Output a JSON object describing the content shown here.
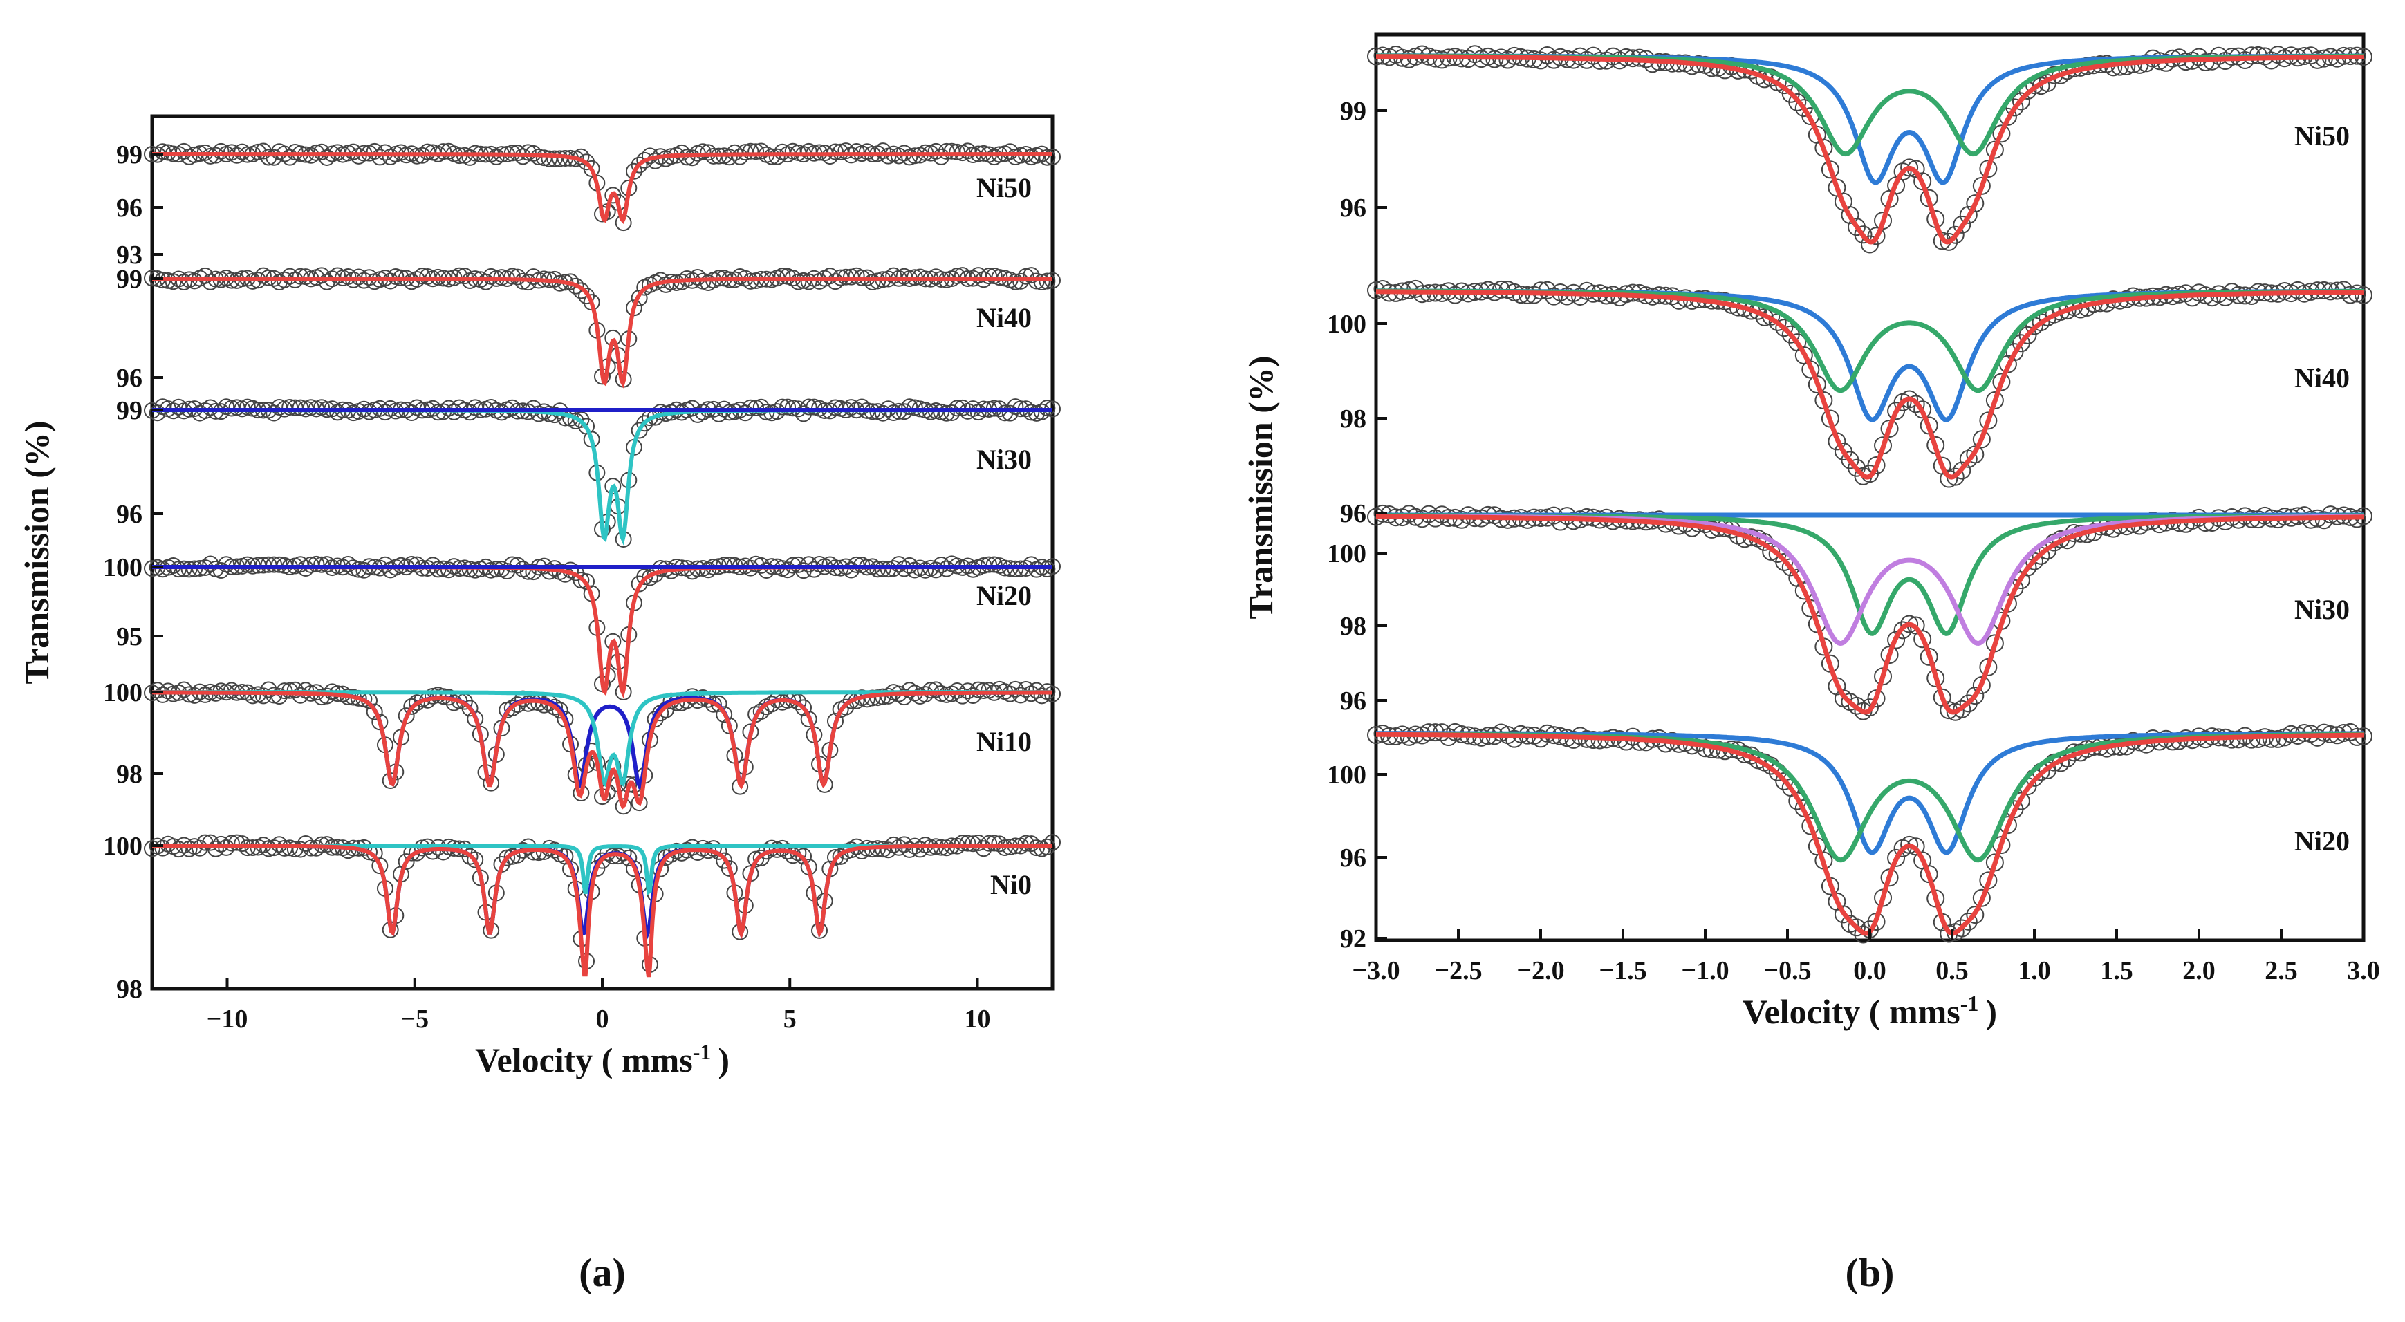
{
  "chart_data": [
    {
      "type": "line",
      "panel": "a",
      "caption": "(a)",
      "xlabel": "Velocity ( mms",
      "xlabel_sup": "-1",
      "xlabel_end": ")",
      "ylabel": "Transmission (%)",
      "xlim": [
        -12,
        12
      ],
      "xticks": [
        -10,
        -5,
        0,
        5,
        10
      ],
      "xtick_labels": [
        "−10",
        "−5",
        "0",
        "5",
        "10"
      ],
      "spectra": [
        {
          "label": "Ni50",
          "yticks": [
            "99",
            "96",
            "93"
          ],
          "components": [
            {
              "name": "fit",
              "color": "#e8433f",
              "kind": "doublet",
              "center": 0.3,
              "split": 0.5,
              "depth": 6.5,
              "width": 0.35
            }
          ]
        },
        {
          "label": "Ni40",
          "yticks": [
            "99",
            "96"
          ],
          "components": [
            {
              "name": "fit",
              "color": "#e8433f",
              "kind": "doublet",
              "center": 0.3,
              "split": 0.5,
              "depth": 6.5,
              "width": 0.35
            }
          ]
        },
        {
          "label": "Ni30",
          "yticks": [
            "99",
            "96"
          ],
          "components": [
            {
              "name": "doublet",
              "color": "#2ec4c4",
              "kind": "doublet",
              "center": 0.3,
              "split": 0.5,
              "depth": 5.5,
              "width": 0.35
            },
            {
              "name": "background",
              "color": "#1f1fc8",
              "kind": "flat"
            }
          ]
        },
        {
          "label": "Ni20",
          "yticks": [
            "100",
            "95"
          ],
          "components": [
            {
              "name": "fit",
              "color": "#e8433f",
              "kind": "doublet",
              "center": 0.3,
              "split": 0.5,
              "depth": 6.0,
              "width": 0.35
            },
            {
              "name": "background",
              "color": "#1f1fc8",
              "kind": "flat"
            }
          ]
        },
        {
          "label": "Ni10",
          "yticks": [
            "100",
            "98"
          ],
          "components": [
            {
              "name": "sextet",
              "color": "#1f1fc8",
              "kind": "sextet",
              "positions": [
                -5.6,
                -3.0,
                -0.6,
                1.0,
                3.7,
                5.9
              ],
              "depth": 2.6,
              "width": 0.45
            },
            {
              "name": "doublet",
              "color": "#2ec4c4",
              "kind": "doublet",
              "center": 0.3,
              "split": 0.5,
              "depth": 2.3,
              "width": 0.4
            },
            {
              "name": "total",
              "color": "#e8433f",
              "kind": "total"
            }
          ]
        },
        {
          "label": "Ni0",
          "yticks": [
            "100",
            "98"
          ],
          "components": [
            {
              "name": "sextet",
              "color": "#1f1fc8",
              "kind": "sextet",
              "positions": [
                -5.6,
                -3.0,
                -0.5,
                1.2,
                3.7,
                5.8
              ],
              "depth": 1.8,
              "width": 0.35
            },
            {
              "name": "doublet",
              "color": "#2ec4c4",
              "kind": "sharp",
              "positions": [
                -0.45,
                1.25
              ],
              "depth": 1.0,
              "width": 0.15
            },
            {
              "name": "total",
              "color": "#e8433f",
              "kind": "total"
            }
          ]
        }
      ]
    },
    {
      "type": "line",
      "panel": "b",
      "caption": "(b)",
      "xlabel": "Velocity ( mms",
      "xlabel_sup": "-1",
      "xlabel_end": ")",
      "ylabel": "Transmission (%)",
      "xlim": [
        -3.0,
        3.0
      ],
      "xticks": [
        -3.0,
        -2.5,
        -2.0,
        -1.5,
        -1.0,
        -0.5,
        0.0,
        0.5,
        1.0,
        1.5,
        2.0,
        2.5,
        3.0
      ],
      "xtick_labels": [
        "−3.0",
        "−2.5",
        "−2.0",
        "−1.5",
        "−1.0",
        "−0.5",
        "0.0",
        "0.5",
        "1.0",
        "1.5",
        "2.0",
        "2.5",
        "3.0"
      ],
      "spectra": [
        {
          "label": "Ni50",
          "yticks": [
            "99",
            "96"
          ],
          "components": [
            {
              "name": "doublet-1",
              "color": "#2e7bd6",
              "kind": "doublet",
              "center": 0.24,
              "split": 0.42,
              "depth": 0.55,
              "width": 0.3
            },
            {
              "name": "doublet-2",
              "color": "#35a86a",
              "kind": "doublet",
              "center": 0.24,
              "split": 0.78,
              "depth": 0.45,
              "width": 0.38
            },
            {
              "name": "total",
              "color": "#e8433f",
              "kind": "total"
            }
          ]
        },
        {
          "label": "Ni40",
          "yticks": [
            "100",
            "98",
            "96"
          ],
          "components": [
            {
              "name": "doublet-1",
              "color": "#2e7bd6",
              "kind": "doublet",
              "center": 0.24,
              "split": 0.46,
              "depth": 0.55,
              "width": 0.32
            },
            {
              "name": "doublet-2",
              "color": "#35a86a",
              "kind": "doublet",
              "center": 0.24,
              "split": 0.84,
              "depth": 0.45,
              "width": 0.38
            },
            {
              "name": "total",
              "color": "#e8433f",
              "kind": "total"
            }
          ]
        },
        {
          "label": "Ni30",
          "yticks": [
            "100",
            "98",
            "96"
          ],
          "components": [
            {
              "name": "doublet-1",
              "color": "#2e7bd6",
              "kind": "flat"
            },
            {
              "name": "doublet-2",
              "color": "#35a86a",
              "kind": "doublet",
              "center": 0.24,
              "split": 0.46,
              "depth": 0.55,
              "width": 0.3
            },
            {
              "name": "doublet-3",
              "color": "#c07ee0",
              "kind": "doublet",
              "center": 0.24,
              "split": 0.84,
              "depth": 0.62,
              "width": 0.4
            },
            {
              "name": "total",
              "color": "#e8433f",
              "kind": "total"
            }
          ]
        },
        {
          "label": "Ni20",
          "yticks": [
            "100",
            "96",
            "92"
          ],
          "components": [
            {
              "name": "doublet-1",
              "color": "#2e7bd6",
              "kind": "doublet",
              "center": 0.24,
              "split": 0.46,
              "depth": 0.5,
              "width": 0.3
            },
            {
              "name": "doublet-2",
              "color": "#35a86a",
              "kind": "doublet",
              "center": 0.24,
              "split": 0.84,
              "depth": 0.55,
              "width": 0.42
            },
            {
              "name": "total",
              "color": "#e8433f",
              "kind": "total"
            }
          ]
        }
      ]
    }
  ]
}
